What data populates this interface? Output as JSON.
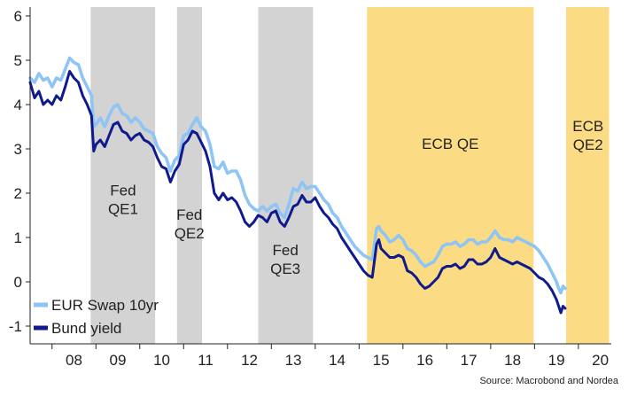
{
  "chart_data": {
    "type": "line",
    "x_unit": "year",
    "xlim": [
      2007.5,
      2020.75
    ],
    "ylim": [
      -1.4,
      6.2
    ],
    "y_ticks": [
      6,
      5,
      4,
      3,
      2,
      1,
      0,
      -1
    ],
    "x_ticks": [
      {
        "label": "08",
        "x": 2008.5
      },
      {
        "label": "09",
        "x": 2009.5
      },
      {
        "label": "10",
        "x": 2010.5
      },
      {
        "label": "11",
        "x": 2011.5
      },
      {
        "label": "12",
        "x": 2012.5
      },
      {
        "label": "13",
        "x": 2013.5
      },
      {
        "label": "14",
        "x": 2014.5
      },
      {
        "label": "15",
        "x": 2015.5
      },
      {
        "label": "16",
        "x": 2016.5
      },
      {
        "label": "17",
        "x": 2017.5
      },
      {
        "label": "18",
        "x": 2018.5
      },
      {
        "label": "19",
        "x": 2019.5
      },
      {
        "label": "20",
        "x": 2020.5
      }
    ],
    "grid": false,
    "legend_position": "bottom-left",
    "series": [
      {
        "name": "EUR Swap 10yr",
        "color": "#8ec5f5",
        "points": [
          [
            2007.5,
            4.6
          ],
          [
            2007.6,
            4.5
          ],
          [
            2007.7,
            4.7
          ],
          [
            2007.8,
            4.55
          ],
          [
            2007.9,
            4.6
          ],
          [
            2008.0,
            4.4
          ],
          [
            2008.1,
            4.6
          ],
          [
            2008.2,
            4.55
          ],
          [
            2008.3,
            4.8
          ],
          [
            2008.4,
            5.05
          ],
          [
            2008.5,
            4.95
          ],
          [
            2008.6,
            4.9
          ],
          [
            2008.7,
            4.6
          ],
          [
            2008.8,
            4.4
          ],
          [
            2008.9,
            4.2
          ],
          [
            2008.95,
            3.5
          ],
          [
            2009.0,
            3.55
          ],
          [
            2009.1,
            3.7
          ],
          [
            2009.2,
            3.5
          ],
          [
            2009.3,
            3.75
          ],
          [
            2009.4,
            3.95
          ],
          [
            2009.5,
            4.0
          ],
          [
            2009.6,
            3.8
          ],
          [
            2009.7,
            3.75
          ],
          [
            2009.8,
            3.6
          ],
          [
            2009.9,
            3.7
          ],
          [
            2010.0,
            3.6
          ],
          [
            2010.1,
            3.45
          ],
          [
            2010.2,
            3.4
          ],
          [
            2010.3,
            3.35
          ],
          [
            2010.4,
            3.05
          ],
          [
            2010.5,
            2.9
          ],
          [
            2010.6,
            2.8
          ],
          [
            2010.7,
            2.5
          ],
          [
            2010.8,
            2.75
          ],
          [
            2010.9,
            2.85
          ],
          [
            2011.0,
            3.3
          ],
          [
            2011.1,
            3.35
          ],
          [
            2011.2,
            3.55
          ],
          [
            2011.3,
            3.7
          ],
          [
            2011.4,
            3.5
          ],
          [
            2011.5,
            3.4
          ],
          [
            2011.6,
            3.1
          ],
          [
            2011.7,
            2.6
          ],
          [
            2011.8,
            2.55
          ],
          [
            2011.9,
            2.7
          ],
          [
            2012.0,
            2.45
          ],
          [
            2012.1,
            2.5
          ],
          [
            2012.2,
            2.5
          ],
          [
            2012.3,
            2.3
          ],
          [
            2012.4,
            1.95
          ],
          [
            2012.5,
            1.75
          ],
          [
            2012.6,
            1.65
          ],
          [
            2012.7,
            1.6
          ],
          [
            2012.8,
            1.7
          ],
          [
            2012.9,
            1.6
          ],
          [
            2013.0,
            1.7
          ],
          [
            2013.1,
            1.75
          ],
          [
            2013.2,
            1.55
          ],
          [
            2013.3,
            1.45
          ],
          [
            2013.4,
            1.75
          ],
          [
            2013.5,
            2.1
          ],
          [
            2013.6,
            2.05
          ],
          [
            2013.7,
            2.25
          ],
          [
            2013.8,
            2.1
          ],
          [
            2013.9,
            2.15
          ],
          [
            2014.0,
            2.15
          ],
          [
            2014.1,
            2.0
          ],
          [
            2014.2,
            1.85
          ],
          [
            2014.3,
            1.75
          ],
          [
            2014.4,
            1.55
          ],
          [
            2014.5,
            1.45
          ],
          [
            2014.6,
            1.25
          ],
          [
            2014.7,
            1.1
          ],
          [
            2014.8,
            0.95
          ],
          [
            2014.9,
            0.8
          ],
          [
            2015.0,
            0.7
          ],
          [
            2015.1,
            0.6
          ],
          [
            2015.2,
            0.55
          ],
          [
            2015.3,
            0.5
          ],
          [
            2015.4,
            1.2
          ],
          [
            2015.45,
            1.25
          ],
          [
            2015.5,
            1.15
          ],
          [
            2015.6,
            1.05
          ],
          [
            2015.7,
            0.9
          ],
          [
            2015.8,
            0.95
          ],
          [
            2015.9,
            1.05
          ],
          [
            2016.0,
            0.95
          ],
          [
            2016.1,
            0.75
          ],
          [
            2016.2,
            0.7
          ],
          [
            2016.3,
            0.6
          ],
          [
            2016.4,
            0.45
          ],
          [
            2016.5,
            0.35
          ],
          [
            2016.6,
            0.4
          ],
          [
            2016.7,
            0.45
          ],
          [
            2016.8,
            0.6
          ],
          [
            2016.9,
            0.8
          ],
          [
            2017.0,
            0.85
          ],
          [
            2017.1,
            0.85
          ],
          [
            2017.2,
            0.9
          ],
          [
            2017.3,
            0.8
          ],
          [
            2017.4,
            0.85
          ],
          [
            2017.5,
            0.95
          ],
          [
            2017.6,
            0.95
          ],
          [
            2017.7,
            0.85
          ],
          [
            2017.8,
            0.9
          ],
          [
            2017.9,
            0.9
          ],
          [
            2018.0,
            1.0
          ],
          [
            2018.1,
            1.15
          ],
          [
            2018.2,
            1.0
          ],
          [
            2018.3,
            0.95
          ],
          [
            2018.4,
            0.95
          ],
          [
            2018.5,
            0.9
          ],
          [
            2018.6,
            1.0
          ],
          [
            2018.7,
            0.95
          ],
          [
            2018.8,
            0.9
          ],
          [
            2018.9,
            0.85
          ],
          [
            2019.0,
            0.8
          ],
          [
            2019.1,
            0.7
          ],
          [
            2019.2,
            0.55
          ],
          [
            2019.3,
            0.4
          ],
          [
            2019.4,
            0.2
          ],
          [
            2019.5,
            0.0
          ],
          [
            2019.55,
            -0.15
          ],
          [
            2019.6,
            -0.25
          ],
          [
            2019.65,
            -0.1
          ],
          [
            2019.7,
            -0.15
          ]
        ]
      },
      {
        "name": "Bund yield",
        "color": "#0f1a8c",
        "points": [
          [
            2007.5,
            4.5
          ],
          [
            2007.6,
            4.15
          ],
          [
            2007.7,
            4.3
          ],
          [
            2007.8,
            4.0
          ],
          [
            2007.9,
            4.1
          ],
          [
            2008.0,
            4.0
          ],
          [
            2008.1,
            4.2
          ],
          [
            2008.2,
            4.1
          ],
          [
            2008.3,
            4.4
          ],
          [
            2008.4,
            4.75
          ],
          [
            2008.5,
            4.6
          ],
          [
            2008.6,
            4.5
          ],
          [
            2008.7,
            4.2
          ],
          [
            2008.8,
            4.0
          ],
          [
            2008.9,
            3.75
          ],
          [
            2008.95,
            2.95
          ],
          [
            2009.0,
            3.1
          ],
          [
            2009.1,
            3.2
          ],
          [
            2009.2,
            3.05
          ],
          [
            2009.3,
            3.3
          ],
          [
            2009.4,
            3.55
          ],
          [
            2009.5,
            3.6
          ],
          [
            2009.6,
            3.4
          ],
          [
            2009.7,
            3.35
          ],
          [
            2009.8,
            3.2
          ],
          [
            2009.9,
            3.3
          ],
          [
            2010.0,
            3.35
          ],
          [
            2010.1,
            3.2
          ],
          [
            2010.2,
            3.15
          ],
          [
            2010.3,
            3.05
          ],
          [
            2010.4,
            2.8
          ],
          [
            2010.5,
            2.6
          ],
          [
            2010.6,
            2.55
          ],
          [
            2010.7,
            2.25
          ],
          [
            2010.8,
            2.5
          ],
          [
            2010.9,
            2.65
          ],
          [
            2011.0,
            3.1
          ],
          [
            2011.1,
            3.2
          ],
          [
            2011.2,
            3.4
          ],
          [
            2011.3,
            3.35
          ],
          [
            2011.4,
            3.15
          ],
          [
            2011.5,
            2.95
          ],
          [
            2011.6,
            2.6
          ],
          [
            2011.7,
            2.0
          ],
          [
            2011.8,
            1.85
          ],
          [
            2011.9,
            2.0
          ],
          [
            2012.0,
            1.85
          ],
          [
            2012.1,
            1.9
          ],
          [
            2012.2,
            1.8
          ],
          [
            2012.3,
            1.6
          ],
          [
            2012.4,
            1.35
          ],
          [
            2012.5,
            1.25
          ],
          [
            2012.6,
            1.35
          ],
          [
            2012.7,
            1.5
          ],
          [
            2012.8,
            1.45
          ],
          [
            2012.9,
            1.35
          ],
          [
            2013.0,
            1.55
          ],
          [
            2013.1,
            1.6
          ],
          [
            2013.2,
            1.35
          ],
          [
            2013.3,
            1.25
          ],
          [
            2013.4,
            1.45
          ],
          [
            2013.5,
            1.7
          ],
          [
            2013.6,
            1.75
          ],
          [
            2013.7,
            1.95
          ],
          [
            2013.8,
            1.8
          ],
          [
            2013.9,
            1.8
          ],
          [
            2014.0,
            1.9
          ],
          [
            2014.1,
            1.7
          ],
          [
            2014.2,
            1.55
          ],
          [
            2014.3,
            1.45
          ],
          [
            2014.4,
            1.3
          ],
          [
            2014.5,
            1.2
          ],
          [
            2014.6,
            1.0
          ],
          [
            2014.7,
            0.85
          ],
          [
            2014.8,
            0.7
          ],
          [
            2014.9,
            0.55
          ],
          [
            2015.0,
            0.4
          ],
          [
            2015.1,
            0.25
          ],
          [
            2015.2,
            0.15
          ],
          [
            2015.3,
            0.1
          ],
          [
            2015.4,
            0.85
          ],
          [
            2015.45,
            0.95
          ],
          [
            2015.5,
            0.75
          ],
          [
            2015.6,
            0.65
          ],
          [
            2015.7,
            0.55
          ],
          [
            2015.8,
            0.55
          ],
          [
            2015.9,
            0.6
          ],
          [
            2016.0,
            0.55
          ],
          [
            2016.1,
            0.25
          ],
          [
            2016.2,
            0.2
          ],
          [
            2016.3,
            0.1
          ],
          [
            2016.4,
            -0.05
          ],
          [
            2016.5,
            -0.15
          ],
          [
            2016.6,
            -0.1
          ],
          [
            2016.7,
            0.0
          ],
          [
            2016.8,
            0.1
          ],
          [
            2016.9,
            0.3
          ],
          [
            2017.0,
            0.35
          ],
          [
            2017.1,
            0.35
          ],
          [
            2017.2,
            0.4
          ],
          [
            2017.3,
            0.3
          ],
          [
            2017.4,
            0.35
          ],
          [
            2017.5,
            0.5
          ],
          [
            2017.6,
            0.5
          ],
          [
            2017.7,
            0.4
          ],
          [
            2017.8,
            0.4
          ],
          [
            2017.9,
            0.45
          ],
          [
            2018.0,
            0.55
          ],
          [
            2018.1,
            0.75
          ],
          [
            2018.2,
            0.55
          ],
          [
            2018.3,
            0.5
          ],
          [
            2018.4,
            0.45
          ],
          [
            2018.5,
            0.4
          ],
          [
            2018.6,
            0.45
          ],
          [
            2018.7,
            0.4
          ],
          [
            2018.8,
            0.35
          ],
          [
            2018.9,
            0.3
          ],
          [
            2019.0,
            0.2
          ],
          [
            2019.1,
            0.1
          ],
          [
            2019.2,
            0.05
          ],
          [
            2019.3,
            -0.05
          ],
          [
            2019.4,
            -0.2
          ],
          [
            2019.5,
            -0.4
          ],
          [
            2019.55,
            -0.55
          ],
          [
            2019.6,
            -0.7
          ],
          [
            2019.65,
            -0.55
          ],
          [
            2019.7,
            -0.6
          ]
        ]
      }
    ],
    "bands": [
      {
        "label_lines": [
          "Fed",
          "QE1"
        ],
        "color": "#d3d3d3",
        "x0": 2008.88,
        "x1": 2010.35,
        "label_x": 2009.62,
        "label_y": 1.95
      },
      {
        "label_lines": [
          "Fed",
          "QE2"
        ],
        "color": "#d3d3d3",
        "x0": 2010.85,
        "x1": 2011.42,
        "label_x": 2011.13,
        "label_y": 1.4
      },
      {
        "label_lines": [
          "Fed",
          "QE3"
        ],
        "color": "#d3d3d3",
        "x0": 2012.7,
        "x1": 2013.95,
        "label_x": 2013.32,
        "label_y": 0.6
      },
      {
        "label_lines": [
          "ECB QE"
        ],
        "color": "#fbdc84",
        "x0": 2015.18,
        "x1": 2018.98,
        "label_x": 2017.08,
        "label_y": 3.0
      },
      {
        "label_lines": [
          "ECB",
          "QE2"
        ],
        "color": "#fbdc84",
        "x0": 2019.72,
        "x1": 2020.7,
        "label_x": 2020.22,
        "label_y": 3.4
      }
    ]
  },
  "source": "Source: Macrobond and Nordea"
}
